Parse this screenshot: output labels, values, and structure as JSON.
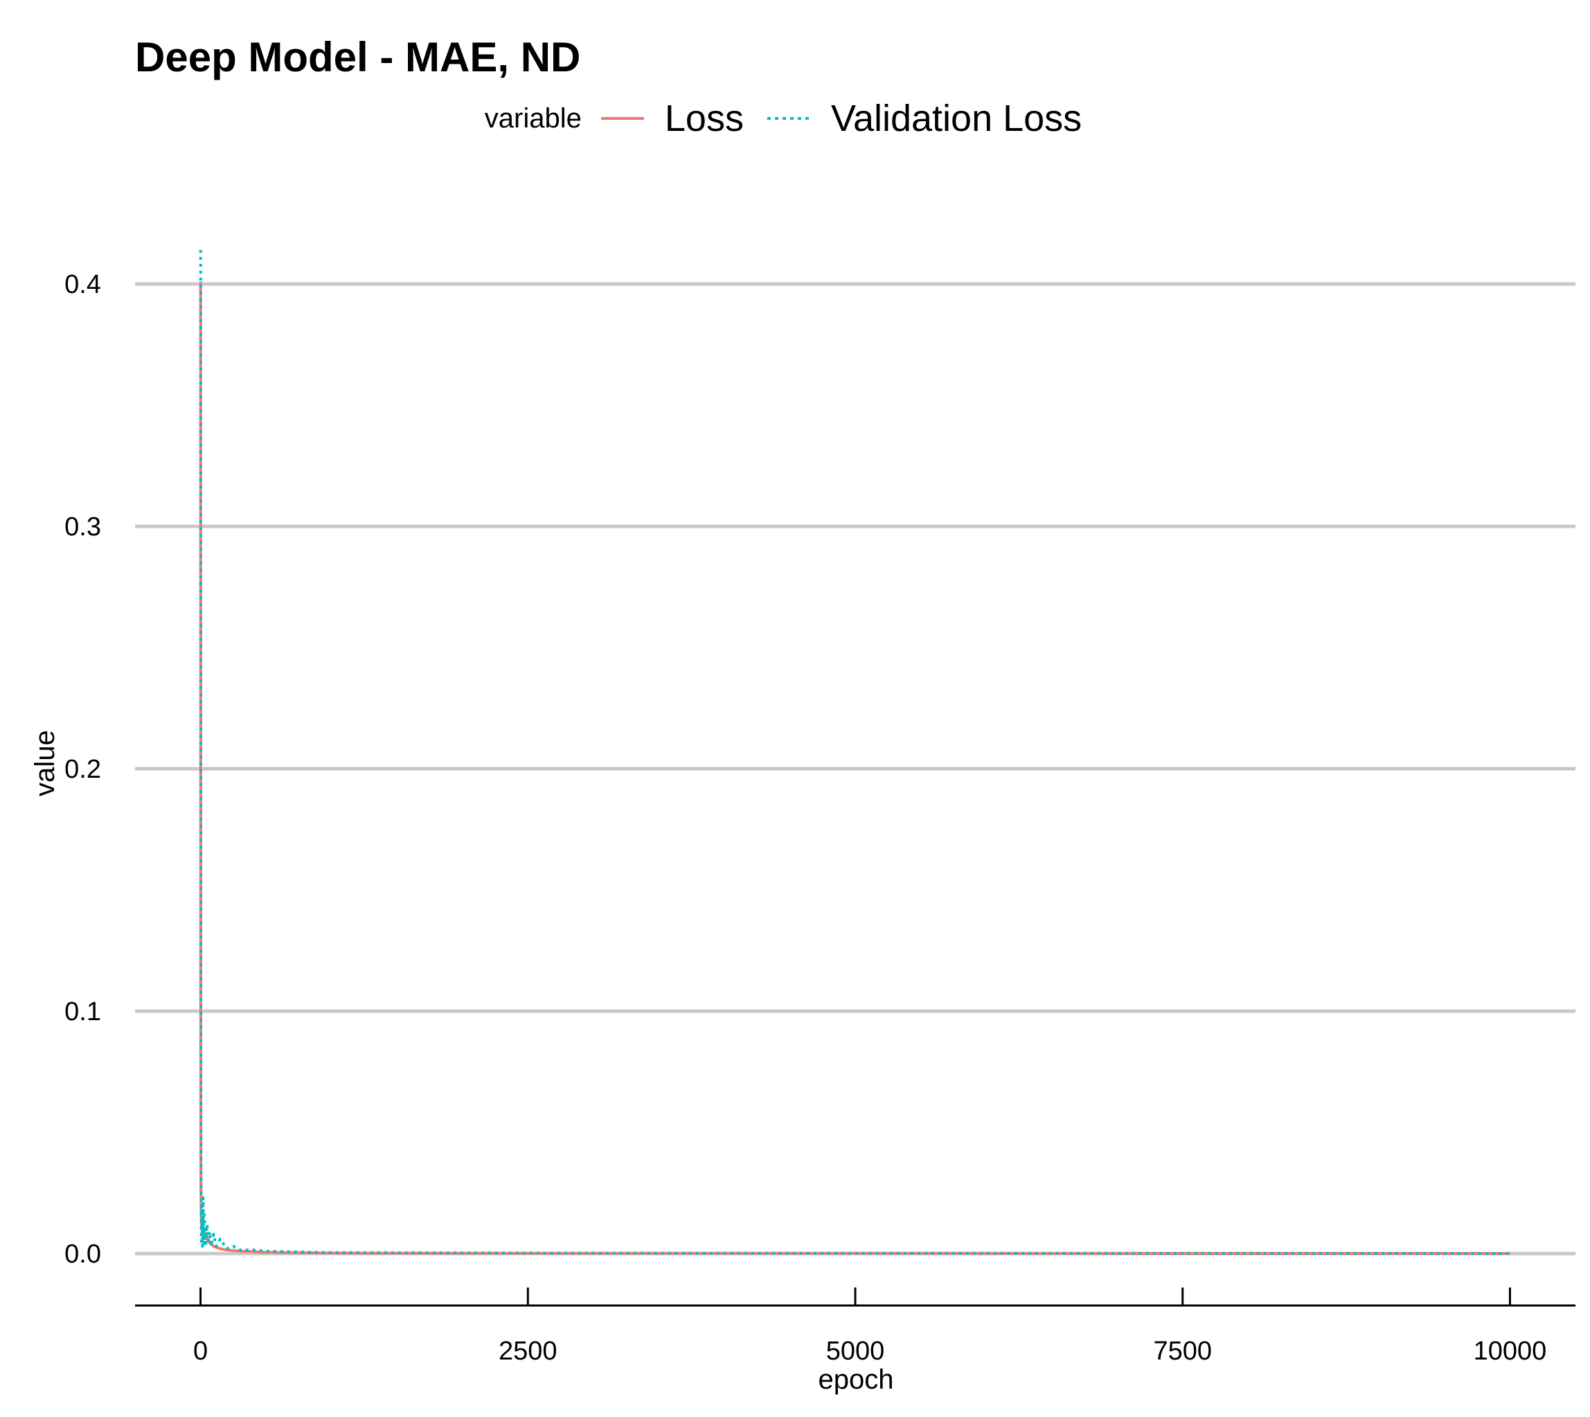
{
  "chart_data": {
    "type": "line",
    "title": "Deep Model - MAE, ND",
    "xlabel": "epoch",
    "ylabel": "value",
    "xlim": [
      -500,
      10500
    ],
    "ylim": [
      -0.02,
      0.42
    ],
    "x_ticks": [
      0,
      2500,
      5000,
      7500,
      10000
    ],
    "x_tick_labels": [
      "0",
      "2500",
      "5000",
      "7500",
      "10000"
    ],
    "y_ticks": [
      0.0,
      0.1,
      0.2,
      0.3,
      0.4
    ],
    "y_tick_labels": [
      "0.0",
      "0.1",
      "0.2",
      "0.3",
      "0.4"
    ],
    "grid": "horizontal major only",
    "legend": {
      "title": "variable",
      "position": "top"
    },
    "series": [
      {
        "name": "Loss",
        "color": "#F8766D",
        "linetype": "solid",
        "x": [
          1,
          2,
          3,
          5,
          10,
          20,
          30,
          40,
          50,
          60,
          80,
          100,
          150,
          200,
          300,
          500,
          1000,
          2500,
          5000,
          7500,
          10000
        ],
        "values": [
          0.401,
          0.08,
          0.03,
          0.015,
          0.01,
          0.008,
          0.01,
          0.006,
          0.007,
          0.005,
          0.004,
          0.003,
          0.002,
          0.0015,
          0.001,
          0.0005,
          0.0002,
          0.0001,
          0.0001,
          0.0,
          0.0
        ]
      },
      {
        "name": "Validation Loss",
        "color": "#00BFC4",
        "linetype": "dotted",
        "x": [
          1,
          2,
          4,
          6,
          10,
          15,
          20,
          25,
          30,
          40,
          50,
          60,
          70,
          80,
          100,
          120,
          150,
          200,
          250,
          300,
          400,
          500,
          700,
          1000,
          2500,
          5000,
          7500,
          10000
        ],
        "values": [
          0.414,
          0.12,
          0.037,
          0.005,
          0.02,
          0.003,
          0.023,
          0.004,
          0.016,
          0.003,
          0.012,
          0.004,
          0.009,
          0.003,
          0.008,
          0.003,
          0.006,
          0.002,
          0.003,
          0.0015,
          0.0015,
          0.001,
          0.0007,
          0.0004,
          0.0002,
          0.0001,
          0.0001,
          0.0
        ]
      }
    ]
  }
}
